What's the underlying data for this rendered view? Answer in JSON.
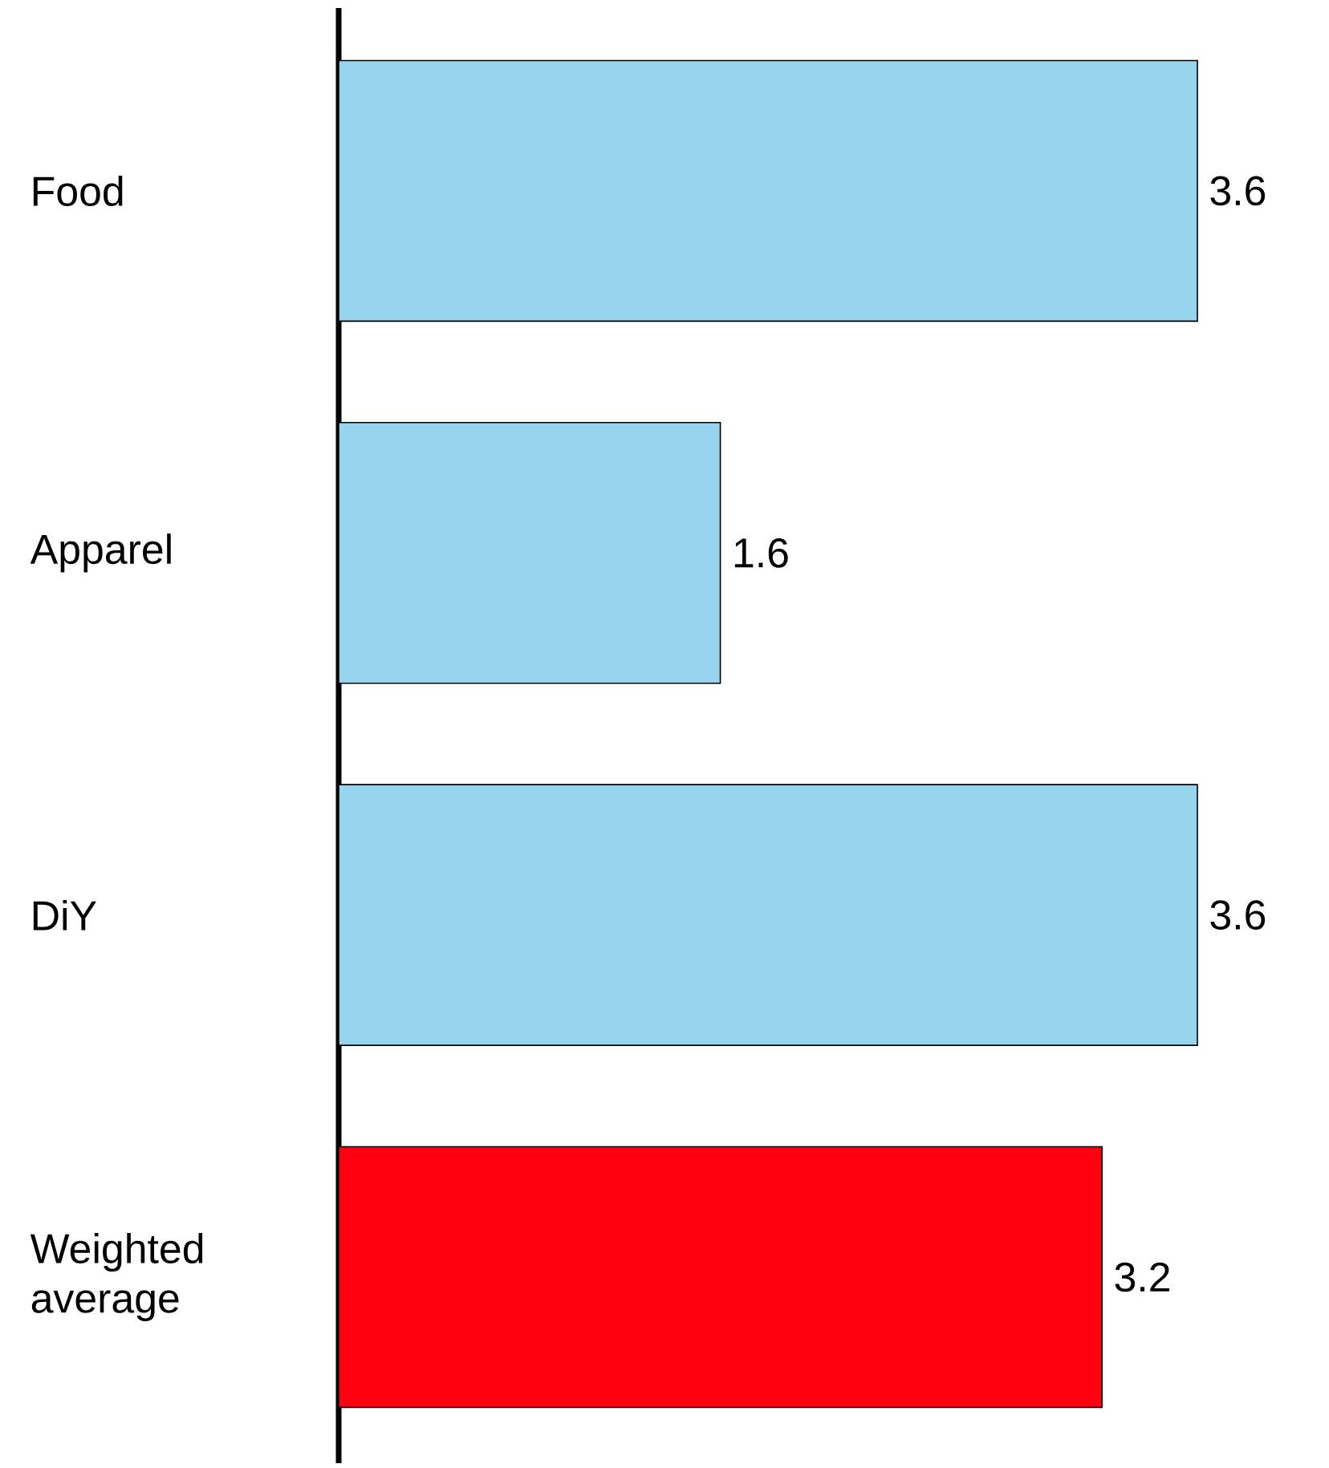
{
  "chart_data": {
    "type": "bar",
    "orientation": "horizontal",
    "categories": [
      "Food",
      "Apparel",
      "DiY",
      "Weighted average"
    ],
    "values": [
      3.6,
      1.6,
      3.6,
      3.2
    ],
    "colors": [
      "#97d5ee",
      "#97d5ee",
      "#97d5ee",
      "#ff0010"
    ],
    "data_labels": true
  }
}
